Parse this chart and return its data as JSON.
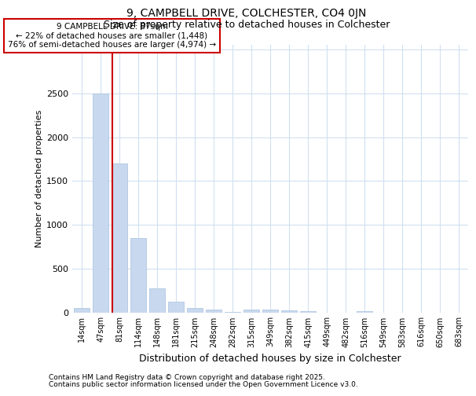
{
  "title1": "9, CAMPBELL DRIVE, COLCHESTER, CO4 0JN",
  "title2": "Size of property relative to detached houses in Colchester",
  "xlabel": "Distribution of detached houses by size in Colchester",
  "ylabel": "Number of detached properties",
  "footer1": "Contains HM Land Registry data © Crown copyright and database right 2025.",
  "footer2": "Contains public sector information licensed under the Open Government Licence v3.0.",
  "annotation_title": "9 CAMPBELL DRIVE: 87sqm",
  "annotation_line1": "← 22% of detached houses are smaller (1,448)",
  "annotation_line2": "76% of semi-detached houses are larger (4,974) →",
  "categories": [
    "14sqm",
    "47sqm",
    "81sqm",
    "114sqm",
    "148sqm",
    "181sqm",
    "215sqm",
    "248sqm",
    "282sqm",
    "315sqm",
    "349sqm",
    "382sqm",
    "415sqm",
    "449sqm",
    "482sqm",
    "516sqm",
    "549sqm",
    "583sqm",
    "616sqm",
    "650sqm",
    "683sqm"
  ],
  "values": [
    50,
    2500,
    1700,
    850,
    275,
    120,
    50,
    30,
    5,
    30,
    30,
    25,
    10,
    0,
    0,
    10,
    0,
    0,
    0,
    0,
    0
  ],
  "bar_color": "#c8d8ee",
  "bar_edge_color": "#a8c0dd",
  "property_line_color": "#cc0000",
  "annotation_box_color": "#cc0000",
  "annotation_bg": "#ffffff",
  "ylim": [
    0,
    3050
  ],
  "yticks": [
    0,
    500,
    1000,
    1500,
    2000,
    2500,
    3000
  ],
  "background_color": "#ffffff",
  "grid_color": "#d0e0f0",
  "property_bin_index": 2,
  "title1_fontsize": 10,
  "title2_fontsize": 9,
  "ylabel_fontsize": 8,
  "xlabel_fontsize": 9
}
